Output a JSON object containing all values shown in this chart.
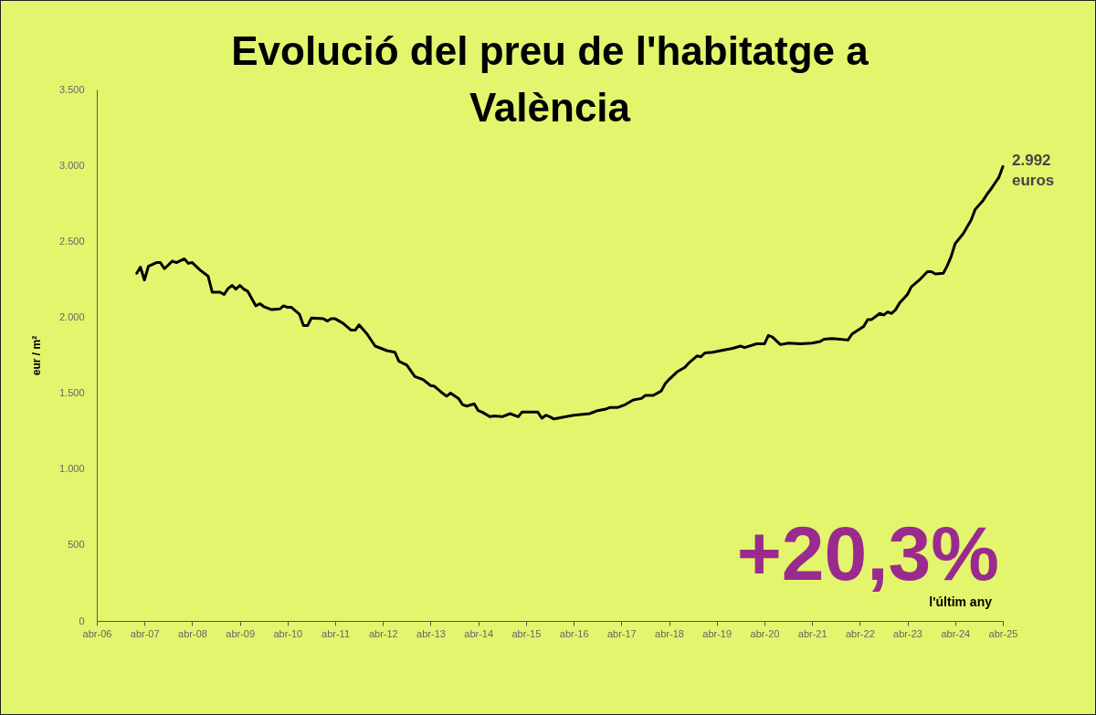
{
  "chart_data": {
    "type": "line",
    "title": "Evolució del preu de l'habitatge a València",
    "ylabel": "eur / m²",
    "x": [
      "2007-02",
      "2007-03",
      "2007-04",
      "2007-05",
      "2007-07",
      "2007-08",
      "2007-09",
      "2007-11",
      "2007-12",
      "2008-02",
      "2008-03",
      "2008-04",
      "2008-06",
      "2008-08",
      "2008-09",
      "2008-11",
      "2008-12",
      "2009-01",
      "2009-02",
      "2009-03",
      "2009-04",
      "2009-05",
      "2009-06",
      "2009-08",
      "2009-09",
      "2009-10",
      "2009-12",
      "2010-02",
      "2010-03",
      "2010-04",
      "2010-05",
      "2010-07",
      "2010-08",
      "2010-09",
      "2010-10",
      "2011-01",
      "2011-02",
      "2011-03",
      "2011-04",
      "2011-06",
      "2011-08",
      "2011-09",
      "2011-10",
      "2011-12",
      "2012-02",
      "2012-05",
      "2012-07",
      "2012-08",
      "2012-10",
      "2012-12",
      "2013-02",
      "2013-04",
      "2013-05",
      "2013-07",
      "2013-08",
      "2013-09",
      "2013-11",
      "2013-12",
      "2014-01",
      "2014-03",
      "2014-04",
      "2014-05",
      "2014-07",
      "2014-08",
      "2014-10",
      "2014-12",
      "2015-02",
      "2015-03",
      "2015-06",
      "2015-07",
      "2015-08",
      "2015-09",
      "2015-10",
      "2015-11",
      "2015-12",
      "2016-02",
      "2016-04",
      "2016-08",
      "2016-10",
      "2016-12",
      "2017-01",
      "2017-03",
      "2017-05",
      "2017-07",
      "2017-09",
      "2017-10",
      "2017-12",
      "2018-02",
      "2018-03",
      "2018-04",
      "2018-06",
      "2018-08",
      "2018-09",
      "2018-11",
      "2018-12",
      "2019-01",
      "2019-03",
      "2019-05",
      "2019-08",
      "2019-10",
      "2019-11",
      "2020-02",
      "2020-04",
      "2020-05",
      "2020-06",
      "2020-08",
      "2020-10",
      "2021-01",
      "2021-04",
      "2021-06",
      "2021-07",
      "2021-09",
      "2021-11",
      "2022-01",
      "2022-02",
      "2022-05",
      "2022-06",
      "2022-07",
      "2022-09",
      "2022-10",
      "2022-11",
      "2022-12",
      "2023-01",
      "2023-02",
      "2023-04",
      "2023-05",
      "2023-07",
      "2023-09",
      "2023-10",
      "2023-11",
      "2024-01",
      "2024-02",
      "2024-03",
      "2024-04",
      "2024-06",
      "2024-08",
      "2024-09",
      "2024-11",
      "2024-12",
      "2025-01",
      "2025-02",
      "2025-03",
      "2025-04"
    ],
    "series": [
      {
        "color": "#000000",
        "values": [
          2290,
          2330,
          2245,
          2335,
          2360,
          2360,
          2320,
          2370,
          2360,
          2385,
          2355,
          2360,
          2310,
          2270,
          2165,
          2165,
          2150,
          2190,
          2210,
          2185,
          2210,
          2185,
          2170,
          2075,
          2090,
          2070,
          2050,
          2055,
          2075,
          2065,
          2065,
          2020,
          1945,
          1945,
          1995,
          1990,
          1975,
          1990,
          1990,
          1960,
          1915,
          1915,
          1950,
          1890,
          1810,
          1780,
          1770,
          1710,
          1685,
          1610,
          1590,
          1550,
          1545,
          1500,
          1480,
          1500,
          1465,
          1425,
          1415,
          1430,
          1385,
          1375,
          1345,
          1350,
          1345,
          1365,
          1345,
          1375,
          1375,
          1375,
          1335,
          1355,
          1345,
          1330,
          1335,
          1345,
          1355,
          1365,
          1385,
          1395,
          1405,
          1405,
          1425,
          1455,
          1465,
          1485,
          1485,
          1515,
          1560,
          1590,
          1640,
          1670,
          1700,
          1745,
          1740,
          1765,
          1770,
          1780,
          1795,
          1810,
          1800,
          1825,
          1825,
          1880,
          1870,
          1820,
          1830,
          1825,
          1830,
          1840,
          1855,
          1860,
          1855,
          1850,
          1890,
          1940,
          1985,
          1985,
          2025,
          2015,
          2035,
          2025,
          2050,
          2095,
          2150,
          2200,
          2245,
          2300,
          2300,
          2285,
          2290,
          2340,
          2400,
          2485,
          2550,
          2640,
          2710,
          2770,
          2810,
          2845,
          2885,
          2920,
          2992
        ]
      }
    ],
    "xlim": [
      "2006-04",
      "2025-04"
    ],
    "xticks": [
      {
        "value": "2006-04",
        "label": "abr-06"
      },
      {
        "value": "2007-04",
        "label": "abr-07"
      },
      {
        "value": "2008-04",
        "label": "abr-08"
      },
      {
        "value": "2009-04",
        "label": "abr-09"
      },
      {
        "value": "2010-04",
        "label": "abr-10"
      },
      {
        "value": "2011-04",
        "label": "abr-11"
      },
      {
        "value": "2012-04",
        "label": "abr-12"
      },
      {
        "value": "2013-04",
        "label": "abr-13"
      },
      {
        "value": "2014-04",
        "label": "abr-14"
      },
      {
        "value": "2015-04",
        "label": "abr-15"
      },
      {
        "value": "2016-04",
        "label": "abr-16"
      },
      {
        "value": "2017-04",
        "label": "abr-17"
      },
      {
        "value": "2018-04",
        "label": "abr-18"
      },
      {
        "value": "2019-04",
        "label": "abr-19"
      },
      {
        "value": "2020-04",
        "label": "abr-20"
      },
      {
        "value": "2021-04",
        "label": "abr-21"
      },
      {
        "value": "2022-04",
        "label": "abr-22"
      },
      {
        "value": "2023-04",
        "label": "abr-23"
      },
      {
        "value": "2024-04",
        "label": "abr-24"
      },
      {
        "value": "2025-04",
        "label": "abr-25"
      }
    ],
    "ylim": [
      0,
      3500
    ],
    "yticks": [
      0,
      {
        "value": 500,
        "label": "500"
      },
      {
        "value": 1000,
        "label": "1.000"
      },
      {
        "value": 1500,
        "label": "1.500"
      },
      {
        "value": 2000,
        "label": "2.000"
      },
      {
        "value": 2500,
        "label": "2.500"
      },
      {
        "value": 3000,
        "label": "3.000"
      },
      {
        "value": 3500,
        "label": "3.500"
      }
    ],
    "annotations": [
      {
        "text": "2.992\neuros",
        "x": "2025-04",
        "y": 2992
      },
      "+20,3%",
      "l'últim any"
    ],
    "grid": false,
    "marker": "none",
    "line_style": "solid"
  }
}
